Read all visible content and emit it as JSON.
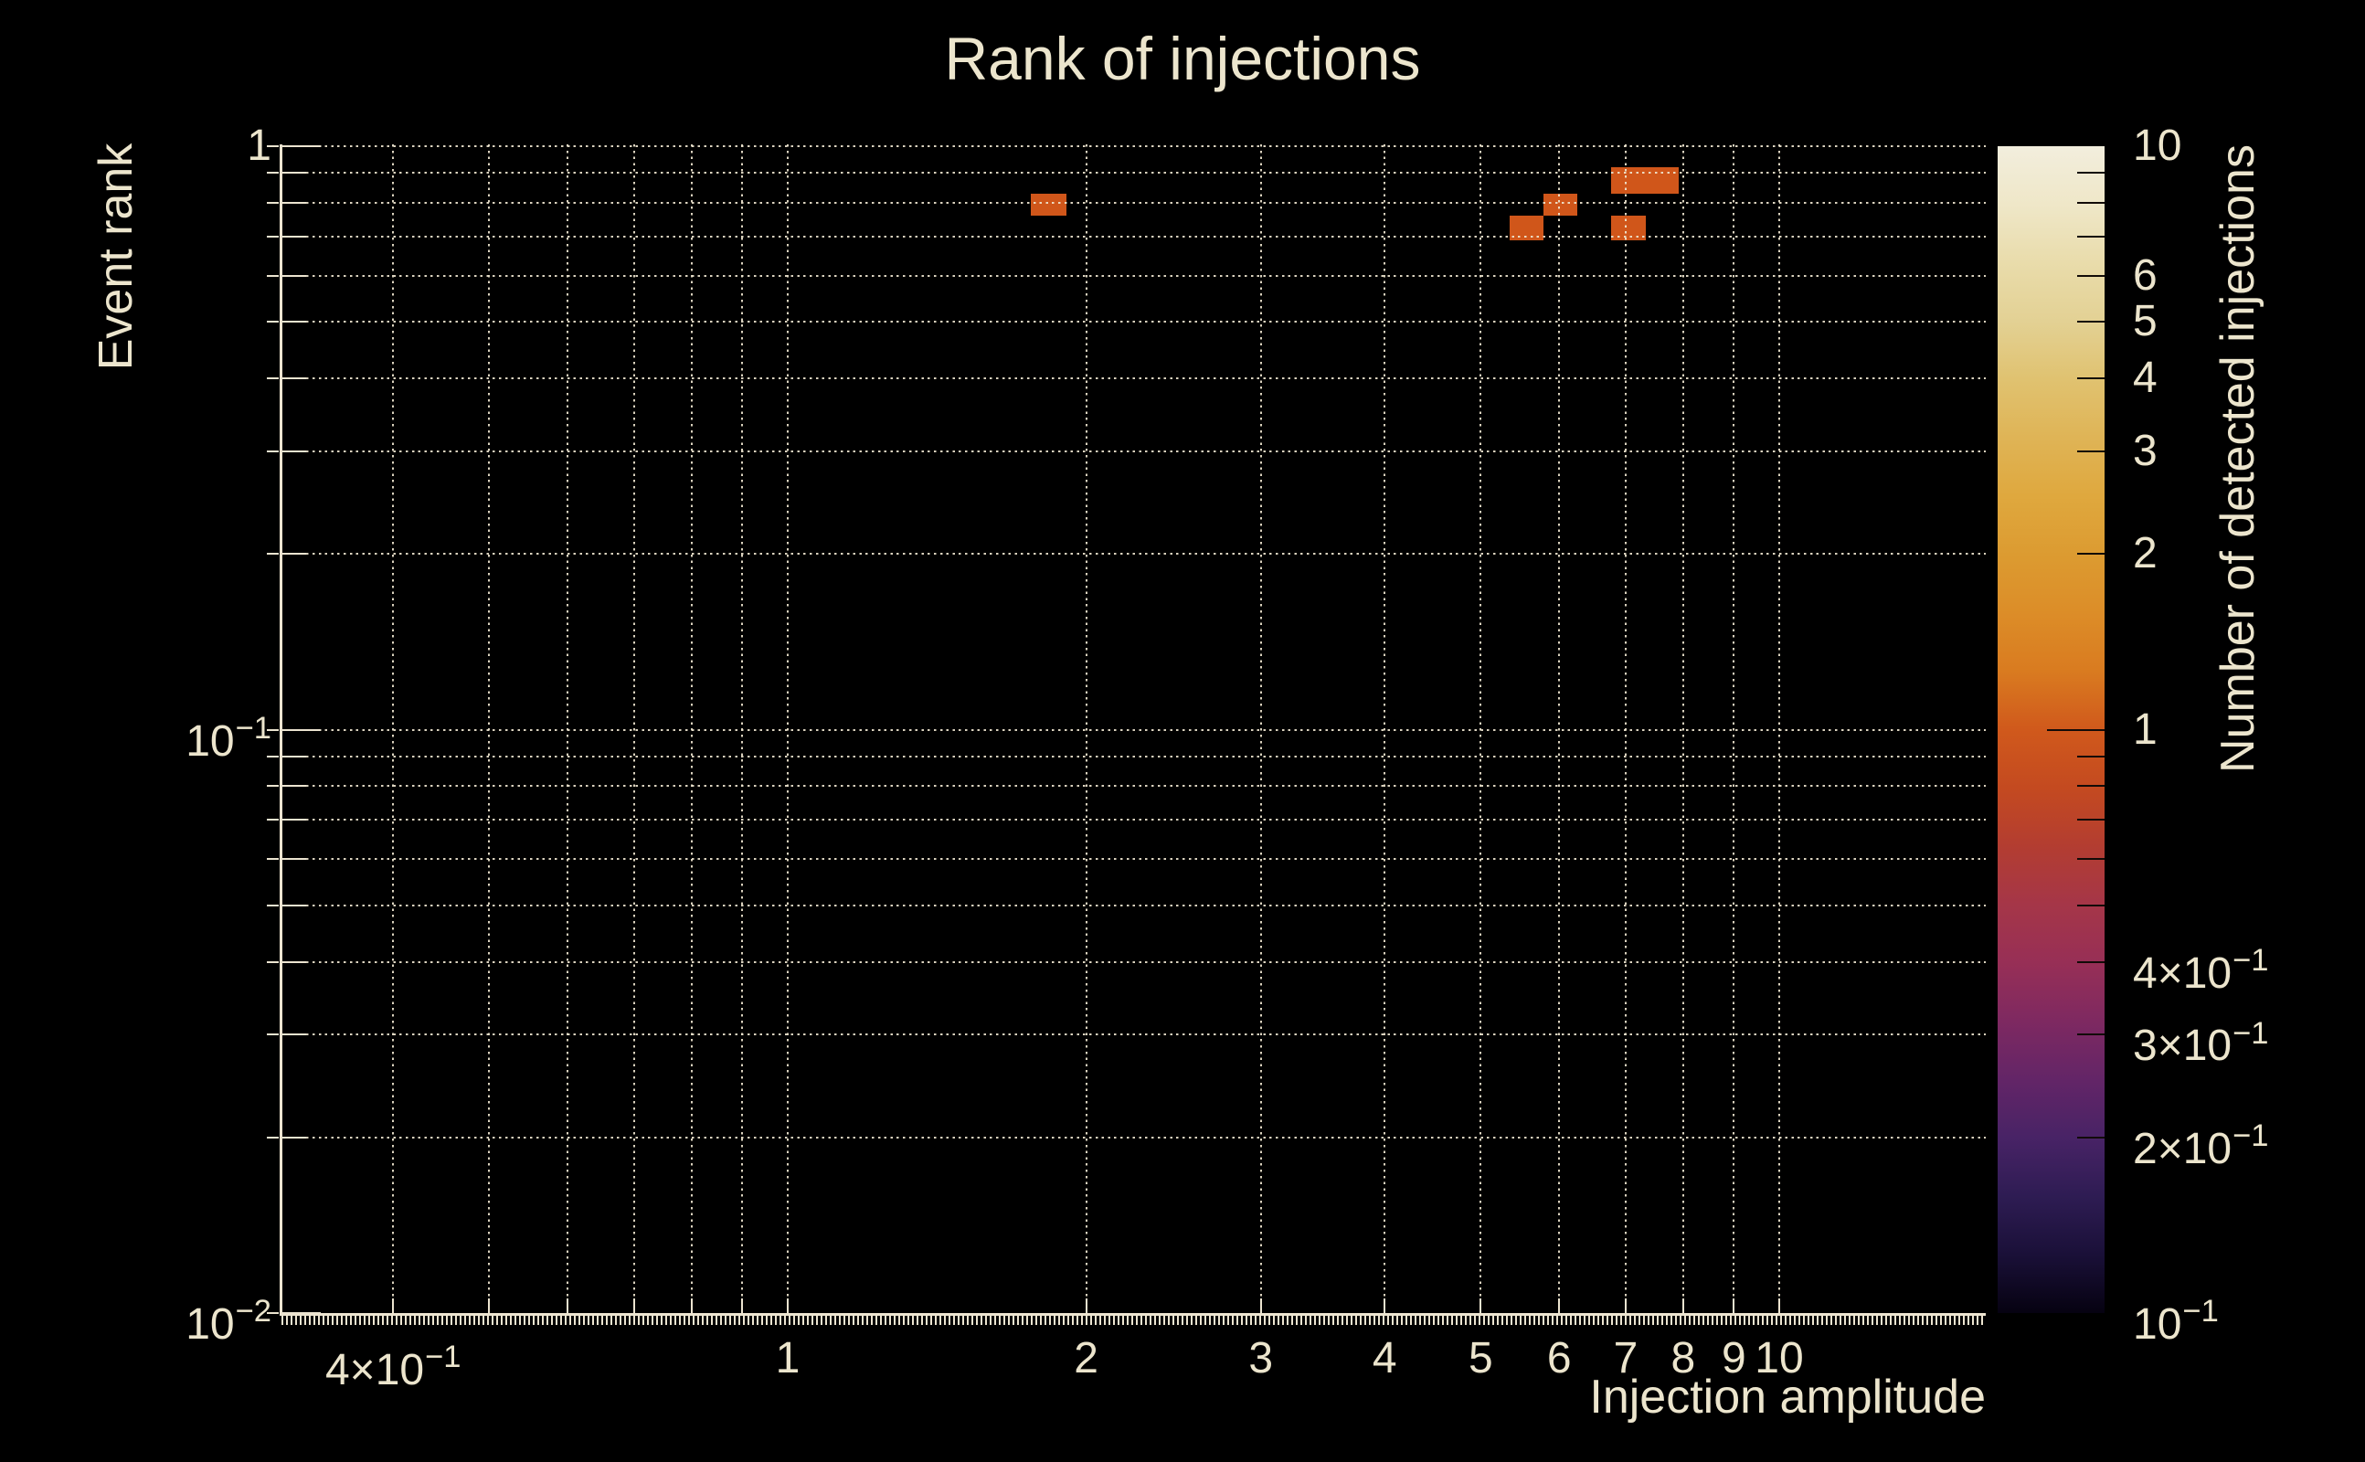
{
  "chart_data": {
    "type": "heatmap",
    "title": "Rank of injections",
    "xlabel": "Injection amplitude",
    "ylabel": "Event rank",
    "colorbar_label": "Number of detected injections",
    "xscale": "log",
    "yscale": "log",
    "colorbar_scale": "log",
    "xlim": [
      0.31,
      16.2
    ],
    "ylim": [
      0.01,
      1
    ],
    "clim": [
      0.1,
      10
    ],
    "grid": "dotted",
    "legend_position": "colorbar-right",
    "cells": [
      {
        "x0": 1.76,
        "x1": 1.91,
        "y0": 0.76,
        "y1": 0.83,
        "value": 1
      },
      {
        "x0": 5.35,
        "x1": 5.78,
        "y0": 0.69,
        "y1": 0.76,
        "value": 1
      },
      {
        "x0": 5.78,
        "x1": 6.26,
        "y0": 0.76,
        "y1": 0.83,
        "value": 1
      },
      {
        "x0": 6.77,
        "x1": 7.33,
        "y0": 0.83,
        "y1": 0.92,
        "value": 1
      },
      {
        "x0": 7.33,
        "x1": 7.92,
        "y0": 0.83,
        "y1": 0.92,
        "value": 1
      },
      {
        "x0": 6.77,
        "x1": 7.33,
        "y0": 0.69,
        "y1": 0.76,
        "value": 1
      }
    ],
    "x_tick_labels": [
      {
        "v": 0.4,
        "base": "4×10",
        "exp": "−1"
      },
      {
        "v": 1,
        "base": "1"
      },
      {
        "v": 2,
        "base": "2"
      },
      {
        "v": 3,
        "base": "3"
      },
      {
        "v": 4,
        "base": "4"
      },
      {
        "v": 5,
        "base": "5"
      },
      {
        "v": 6,
        "base": "6"
      },
      {
        "v": 7,
        "base": "7"
      },
      {
        "v": 8,
        "base": "8"
      },
      {
        "v": 9,
        "base": "9"
      },
      {
        "v": 10,
        "base": "10"
      }
    ],
    "y_tick_labels": [
      {
        "v": 1,
        "base": "1"
      },
      {
        "v": 0.1,
        "base": "10",
        "exp": "−1"
      },
      {
        "v": 0.01,
        "base": "10",
        "exp": "−2"
      }
    ],
    "x_grid": [
      0.4,
      0.5,
      0.6,
      0.7,
      0.8,
      0.9,
      1,
      2,
      3,
      4,
      5,
      6,
      7,
      8,
      9,
      10
    ],
    "y_grid": [
      1,
      0.9,
      0.8,
      0.7,
      0.6,
      0.5,
      0.4,
      0.3,
      0.2,
      0.1,
      0.09,
      0.08,
      0.07,
      0.06,
      0.05,
      0.04,
      0.03,
      0.02
    ],
    "colorbar_tick_labels": [
      {
        "v": 10,
        "base": "10"
      },
      {
        "v": 6,
        "base": "6"
      },
      {
        "v": 5,
        "base": "5"
      },
      {
        "v": 4,
        "base": "4"
      },
      {
        "v": 3,
        "base": "3"
      },
      {
        "v": 2,
        "base": "2"
      },
      {
        "v": 1,
        "base": "1"
      },
      {
        "v": 0.4,
        "base": "4×10",
        "exp": "−1"
      },
      {
        "v": 0.3,
        "base": "3×10",
        "exp": "−1"
      },
      {
        "v": 0.2,
        "base": "2×10",
        "exp": "−1"
      },
      {
        "v": 0.1,
        "base": "10",
        "exp": "−1"
      }
    ],
    "colorbar_minor_ticks": [
      9,
      8,
      7,
      6,
      5,
      4,
      3,
      2,
      0.9,
      0.8,
      0.7,
      0.6,
      0.5,
      0.4,
      0.3,
      0.2
    ],
    "colorbar_major_ticks": [
      1
    ],
    "colorbar_gradient": [
      [
        "0%",
        "#060211"
      ],
      [
        "5%",
        "#1a1038"
      ],
      [
        "10%",
        "#2e1c53"
      ],
      [
        "15%",
        "#482366"
      ],
      [
        "20%",
        "#632567"
      ],
      [
        "25%",
        "#7e2961"
      ],
      [
        "30%",
        "#972f56"
      ],
      [
        "35%",
        "#a53648"
      ],
      [
        "40%",
        "#b33d31"
      ],
      [
        "45%",
        "#c44a20"
      ],
      [
        "50%",
        "#d0591c"
      ],
      [
        "55%",
        "#d97b20"
      ],
      [
        "60%",
        "#dc8d28"
      ],
      [
        "65%",
        "#dc9b31"
      ],
      [
        "70%",
        "#dfa83e"
      ],
      [
        "75%",
        "#dfb456"
      ],
      [
        "80%",
        "#e0c270"
      ],
      [
        "85%",
        "#e3d194"
      ],
      [
        "90%",
        "#e9dcab"
      ],
      [
        "95%",
        "#efe7c8"
      ],
      [
        "100%",
        "#f2eedd"
      ]
    ]
  },
  "colors": {
    "background": "#000000",
    "text": "#ece5cd",
    "grid": "#eee5cf",
    "axis": "#ece4d0",
    "cell_value_1": "#d0561a",
    "colorbar_tick": "#120b08"
  }
}
